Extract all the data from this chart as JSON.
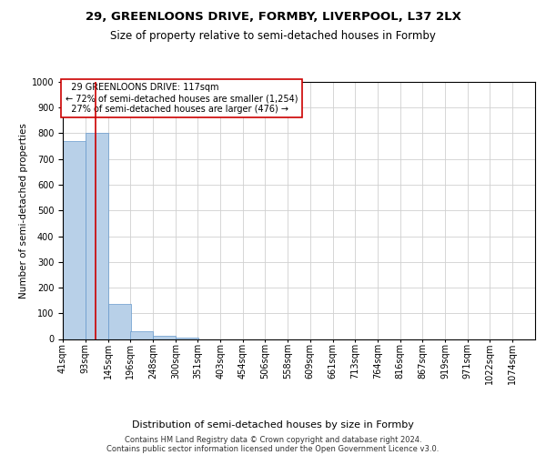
{
  "title1": "29, GREENLOONS DRIVE, FORMBY, LIVERPOOL, L37 2LX",
  "title2": "Size of property relative to semi-detached houses in Formby",
  "xlabel": "Distribution of semi-detached houses by size in Formby",
  "ylabel": "Number of semi-detached properties",
  "footnote1": "Contains HM Land Registry data © Crown copyright and database right 2024.",
  "footnote2": "Contains public sector information licensed under the Open Government Licence v3.0.",
  "property_label": "29 GREENLOONS DRIVE: 117sqm",
  "pct_smaller": 72,
  "count_smaller": 1254,
  "pct_larger": 27,
  "count_larger": 476,
  "bin_labels": [
    "41sqm",
    "93sqm",
    "145sqm",
    "196sqm",
    "248sqm",
    "300sqm",
    "351sqm",
    "403sqm",
    "454sqm",
    "506sqm",
    "558sqm",
    "609sqm",
    "661sqm",
    "713sqm",
    "764sqm",
    "816sqm",
    "867sqm",
    "919sqm",
    "971sqm",
    "1022sqm",
    "1074sqm"
  ],
  "bin_edges": [
    41,
    93,
    145,
    196,
    248,
    300,
    351,
    403,
    454,
    506,
    558,
    609,
    661,
    713,
    764,
    816,
    867,
    919,
    971,
    1022,
    1074
  ],
  "bar_heights": [
    770,
    800,
    137,
    30,
    12,
    7,
    0,
    0,
    0,
    0,
    0,
    0,
    0,
    0,
    0,
    0,
    0,
    0,
    0,
    0
  ],
  "bar_color": "#b8d0e8",
  "bar_edge_color": "#6699cc",
  "vline_x": 117,
  "vline_color": "#cc0000",
  "annotation_box_edge_color": "#cc0000",
  "ylim": [
    0,
    1000
  ],
  "yticks": [
    0,
    100,
    200,
    300,
    400,
    500,
    600,
    700,
    800,
    900,
    1000
  ],
  "grid_color": "#d0d0d0",
  "bg_color": "#ffffff",
  "title1_fontsize": 9.5,
  "title2_fontsize": 8.5,
  "xlabel_fontsize": 8,
  "ylabel_fontsize": 7.5,
  "tick_fontsize": 7,
  "annot_fontsize": 7,
  "footnote_fontsize": 6
}
